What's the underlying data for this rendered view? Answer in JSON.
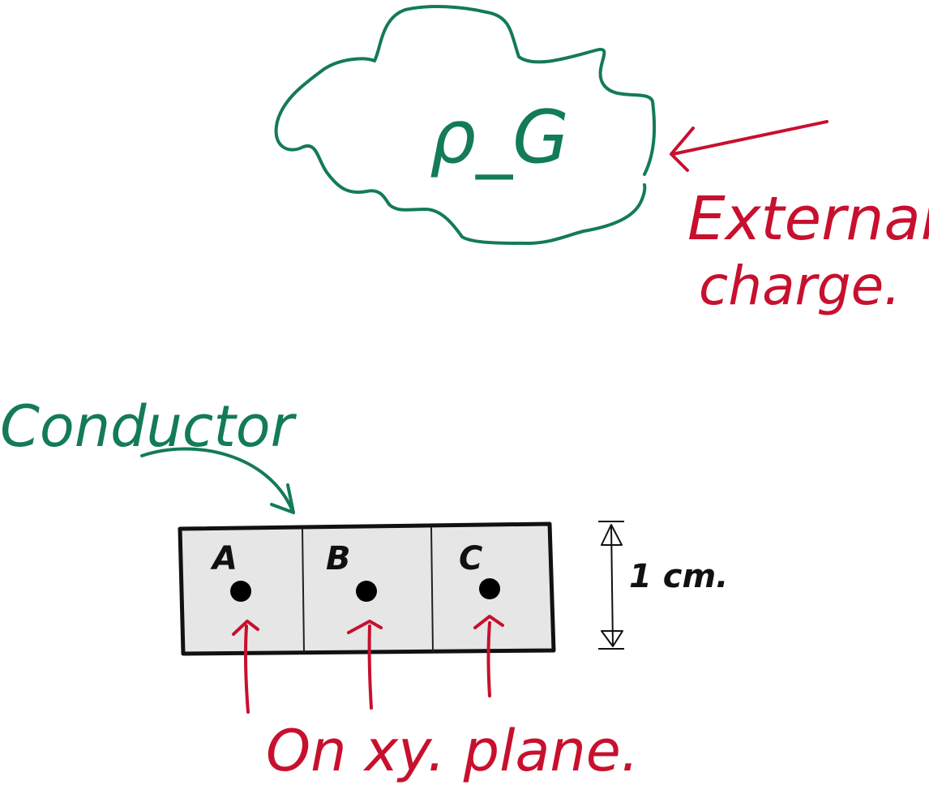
{
  "cloud": {
    "label": "ρ_G",
    "color": "#137a5a"
  },
  "external_label": {
    "line1": "External",
    "line2": "charge.",
    "color": "#c8102e"
  },
  "conductor": {
    "label": "Conductor",
    "color": "#137a5a",
    "fill": "#e6e6e6"
  },
  "points": [
    {
      "label": "A"
    },
    {
      "label": "B"
    },
    {
      "label": "C"
    }
  ],
  "dimension": {
    "label": "1 cm."
  },
  "plane_label": {
    "text": "On xy. plane.",
    "color": "#c8102e"
  }
}
